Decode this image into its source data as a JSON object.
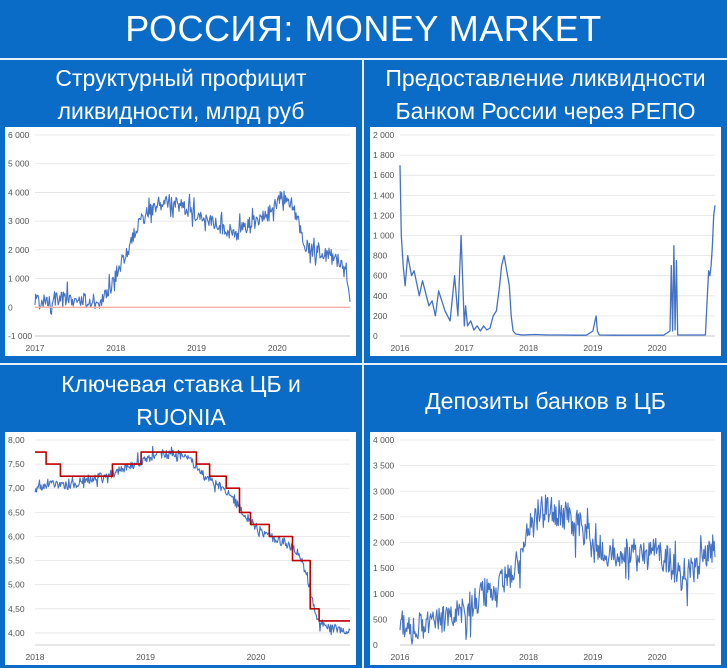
{
  "header": {
    "title": "РОССИЯ: MONEY MARKET"
  },
  "panels": [
    {
      "id": "liquidity",
      "title_lines": [
        "Структурный профицит",
        "ликвидности, млрд руб"
      ]
    },
    {
      "id": "repo",
      "title_lines": [
        "Предоставление ликвидности",
        "Банком России через РЕПО"
      ]
    },
    {
      "id": "rate",
      "title_lines": [
        "Ключевая ставка ЦБ и",
        "RUONIA"
      ]
    },
    {
      "id": "deposits",
      "title_lines": [
        "Депозиты банков в ЦБ"
      ]
    }
  ],
  "colors": {
    "background": "#0b6cc7",
    "series_blue": "#4472c4",
    "series_red": "#c00000",
    "zero_line": "#f4b0a8"
  },
  "chart_data": [
    {
      "type": "line",
      "title": "Структурный профицит ликвидности, млрд руб",
      "xlim": [
        2017.0,
        2020.9
      ],
      "ylim": [
        -1000,
        6000
      ],
      "y_ticks": [
        -1000,
        0,
        1000,
        2000,
        3000,
        4000,
        5000,
        6000
      ],
      "y_tick_labels": [
        "-1 000",
        "0",
        "1 000",
        "2 000",
        "3 000",
        "4 000",
        "5 000",
        "6 000"
      ],
      "x_ticks": [
        2017,
        2018,
        2019,
        2020
      ],
      "x_tick_labels": [
        "2017",
        "2018",
        "2019",
        "2020"
      ],
      "grid": "horizontal",
      "series": [
        {
          "color": "#4472c4",
          "noise": 380,
          "x": [
            2017.0,
            2017.3,
            2017.6,
            2017.75,
            2017.9,
            2018.1,
            2018.3,
            2018.5,
            2018.7,
            2018.9,
            2019.1,
            2019.3,
            2019.5,
            2019.7,
            2019.9,
            2020.05,
            2020.2,
            2020.35,
            2020.5,
            2020.65,
            2020.8,
            2020.86,
            2020.9
          ],
          "values": [
            200,
            300,
            250,
            100,
            500,
            1700,
            3000,
            3600,
            3700,
            3400,
            3100,
            2800,
            2600,
            2900,
            3300,
            3900,
            3500,
            2100,
            1900,
            1800,
            1600,
            900,
            400
          ]
        },
        {
          "color": "#f4b0a8",
          "x": [
            2017.0,
            2020.9
          ],
          "values": [
            0,
            0
          ]
        }
      ]
    },
    {
      "type": "line",
      "title": "Предоставление ликвидности Банком России через РЕПО",
      "xlim": [
        2016.0,
        2020.9
      ],
      "ylim": [
        0,
        2000
      ],
      "y_ticks": [
        0,
        200,
        400,
        600,
        800,
        1000,
        1200,
        1400,
        1600,
        1800,
        2000
      ],
      "y_tick_labels": [
        "0",
        "200",
        "400",
        "600",
        "800",
        "1 000",
        "1 200",
        "1 400",
        "1 600",
        "1 800",
        "2 000"
      ],
      "x_ticks": [
        2016,
        2017,
        2018,
        2019,
        2020
      ],
      "x_tick_labels": [
        "2016",
        "2017",
        "2018",
        "2019",
        "2020"
      ],
      "grid": "horizontal",
      "series": [
        {
          "color": "#4472c4",
          "x": [
            2016.0,
            2016.02,
            2016.05,
            2016.08,
            2016.12,
            2016.18,
            2016.22,
            2016.3,
            2016.35,
            2016.45,
            2016.5,
            2016.55,
            2016.6,
            2016.7,
            2016.78,
            2016.85,
            2016.9,
            2016.95,
            2017.0,
            2017.02,
            2017.05,
            2017.1,
            2017.15,
            2017.2,
            2017.25,
            2017.3,
            2017.35,
            2017.4,
            2017.45,
            2017.5,
            2017.55,
            2017.58,
            2017.62,
            2017.66,
            2017.7,
            2017.73,
            2017.76,
            2017.8,
            2017.9,
            2018.1,
            2018.3,
            2018.5,
            2018.7,
            2018.9,
            2019.0,
            2019.05,
            2019.07,
            2019.1,
            2019.3,
            2019.5,
            2019.7,
            2019.9,
            2020.1,
            2020.2,
            2020.22,
            2020.24,
            2020.26,
            2020.28,
            2020.3,
            2020.32,
            2020.5,
            2020.75,
            2020.8,
            2020.82,
            2020.84,
            2020.86,
            2020.88,
            2020.9
          ],
          "values": [
            1700,
            1000,
            700,
            500,
            800,
            600,
            650,
            400,
            550,
            300,
            350,
            200,
            450,
            250,
            150,
            600,
            200,
            1000,
            100,
            300,
            100,
            150,
            60,
            100,
            50,
            100,
            60,
            80,
            200,
            250,
            500,
            700,
            800,
            650,
            500,
            200,
            50,
            20,
            10,
            15,
            10,
            10,
            8,
            8,
            50,
            200,
            50,
            10,
            8,
            8,
            8,
            8,
            8,
            50,
            700,
            50,
            900,
            60,
            750,
            10,
            10,
            10,
            650,
            600,
            700,
            900,
            1200,
            1300
          ]
        }
      ]
    },
    {
      "type": "line",
      "title": "Ключевая ставка ЦБ и RUONIA",
      "xlim": [
        2018.0,
        2020.85
      ],
      "ylim": [
        3.75,
        8.0
      ],
      "y_ticks": [
        4.0,
        4.5,
        5.0,
        5.5,
        6.0,
        6.5,
        7.0,
        7.5,
        8.0
      ],
      "y_tick_labels": [
        "4,00",
        "4,50",
        "5,00",
        "5,50",
        "6,00",
        "6,50",
        "7,00",
        "7,50",
        "8,00"
      ],
      "x_ticks": [
        2018,
        2019,
        2020
      ],
      "x_tick_labels": [
        "2018",
        "2019",
        "2020"
      ],
      "grid": "horizontal",
      "series": [
        {
          "color": "#4472c4",
          "noise": 0.13,
          "x": [
            2018.0,
            2018.15,
            2018.3,
            2018.5,
            2018.7,
            2018.9,
            2019.1,
            2019.3,
            2019.45,
            2019.55,
            2019.7,
            2019.85,
            2019.95,
            2020.1,
            2020.25,
            2020.4,
            2020.5,
            2020.55,
            2020.65,
            2020.75,
            2020.85
          ],
          "values": [
            7.0,
            7.1,
            7.05,
            7.2,
            7.3,
            7.5,
            7.7,
            7.7,
            7.5,
            7.2,
            7.0,
            6.6,
            6.3,
            6.0,
            5.9,
            5.6,
            4.8,
            4.3,
            4.1,
            4.1,
            4.0
          ]
        },
        {
          "color": "#c00000",
          "step": true,
          "x": [
            2018.0,
            2018.1,
            2018.23,
            2018.7,
            2018.96,
            2019.46,
            2019.58,
            2019.73,
            2019.85,
            2019.95,
            2020.12,
            2020.33,
            2020.49,
            2020.57,
            2020.85
          ],
          "values": [
            7.75,
            7.5,
            7.25,
            7.5,
            7.75,
            7.5,
            7.25,
            7.0,
            6.5,
            6.25,
            6.0,
            5.5,
            4.5,
            4.25,
            4.25
          ]
        }
      ]
    },
    {
      "type": "line",
      "title": "Депозиты банков в ЦБ",
      "xlim": [
        2016.0,
        2020.9
      ],
      "ylim": [
        0,
        4000
      ],
      "y_ticks": [
        0,
        500,
        1000,
        1500,
        2000,
        2500,
        3000,
        3500,
        4000
      ],
      "y_tick_labels": [
        "0",
        "500",
        "1 000",
        "1 500",
        "2 000",
        "2 500",
        "3 000",
        "3 500",
        "4 000"
      ],
      "x_ticks": [
        2016,
        2017,
        2018,
        2019,
        2020
      ],
      "x_tick_labels": [
        "2016",
        "2017",
        "2018",
        "2019",
        "2020"
      ],
      "grid": "horizontal",
      "series": [
        {
          "color": "#4472c4",
          "noise": 420,
          "x": [
            2016.0,
            2016.2,
            2016.4,
            2016.6,
            2016.8,
            2017.0,
            2017.2,
            2017.4,
            2017.6,
            2017.8,
            2018.0,
            2018.2,
            2018.4,
            2018.6,
            2018.8,
            2019.0,
            2019.2,
            2019.4,
            2019.6,
            2019.8,
            2020.0,
            2020.2,
            2020.4,
            2020.6,
            2020.8,
            2020.9
          ],
          "values": [
            400,
            350,
            400,
            450,
            600,
            750,
            900,
            1100,
            1200,
            1500,
            2200,
            2700,
            2600,
            2500,
            2300,
            2000,
            1800,
            1800,
            1900,
            1700,
            1800,
            1600,
            1300,
            1500,
            1800,
            1900
          ]
        }
      ]
    }
  ]
}
